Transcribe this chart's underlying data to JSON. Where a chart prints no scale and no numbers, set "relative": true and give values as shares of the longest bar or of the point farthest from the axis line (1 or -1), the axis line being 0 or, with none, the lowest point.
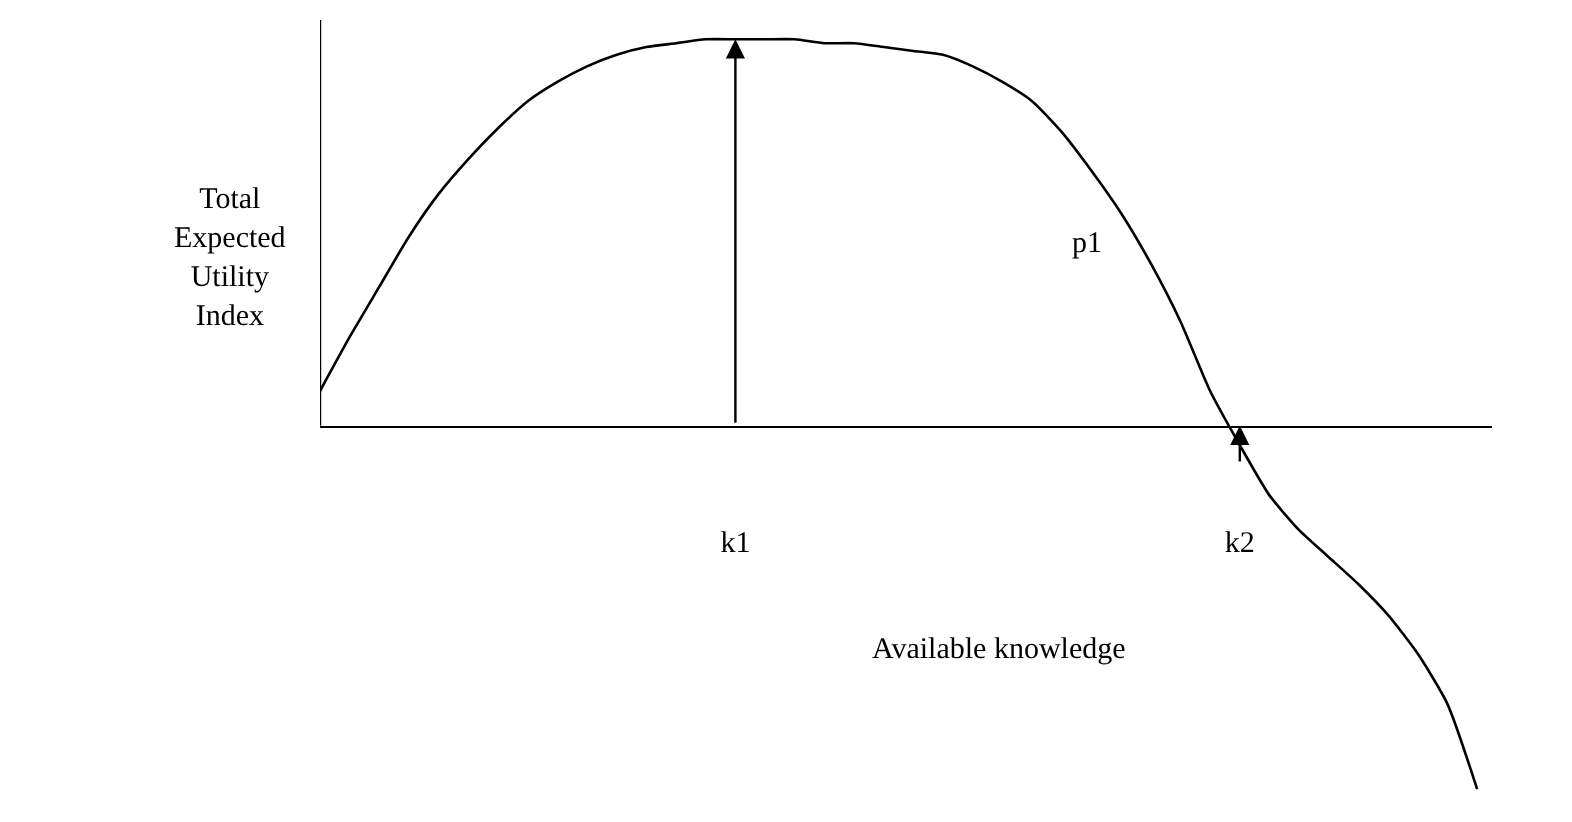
{
  "chart_data": {
    "type": "line",
    "relative": true,
    "ylabel": "Total Expected Utility Index",
    "xlabel": "Available knowledge",
    "tick_labels": "x",
    "legend": false,
    "marker": "none",
    "line_style": "solid",
    "categories": [
      null,
      null,
      null,
      null,
      null,
      null,
      null,
      null,
      null,
      null,
      null,
      null,
      null,
      null,
      "k1",
      null,
      null,
      null,
      null,
      null,
      null,
      null,
      null,
      null,
      null,
      null,
      null,
      null,
      null,
      null,
      null,
      "k2",
      null,
      null,
      null,
      null,
      null,
      null,
      null,
      null
    ],
    "series": [
      {
        "color": "#000000",
        "values": [
          0.09,
          0.23,
          0.36,
          0.49,
          0.6,
          0.69,
          0.77,
          0.84,
          0.89,
          0.93,
          0.96,
          0.98,
          0.99,
          1.0,
          1.0,
          1.0,
          1.0,
          0.99,
          0.99,
          0.98,
          0.97,
          0.96,
          0.93,
          0.89,
          0.84,
          0.76,
          0.66,
          0.55,
          0.42,
          0.27,
          0.09,
          -0.05,
          -0.18,
          -0.27,
          -0.34,
          -0.41,
          -0.49,
          -0.59,
          -0.72,
          -0.94
        ]
      }
    ],
    "annotations": [
      "p1"
    ]
  }
}
